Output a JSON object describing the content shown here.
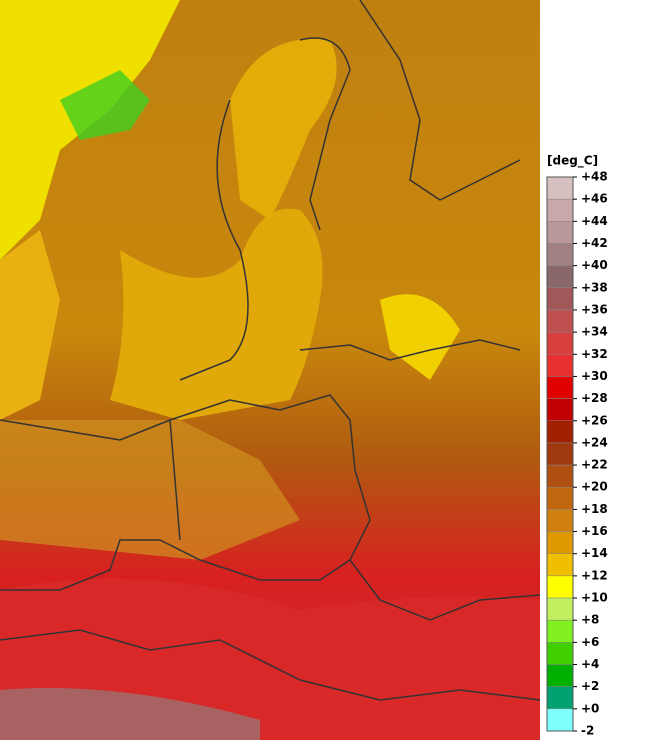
{
  "legend": {
    "unit": "[deg_C]",
    "ticks": [
      {
        "value": 48,
        "label": "+48"
      },
      {
        "value": 46,
        "label": "+46"
      },
      {
        "value": 44,
        "label": "+44"
      },
      {
        "value": 42,
        "label": "+42"
      },
      {
        "value": 40,
        "label": "+40"
      },
      {
        "value": 38,
        "label": "+38"
      },
      {
        "value": 36,
        "label": "+36"
      },
      {
        "value": 34,
        "label": "+34"
      },
      {
        "value": 32,
        "label": "+32"
      },
      {
        "value": 30,
        "label": "+30"
      },
      {
        "value": 28,
        "label": "+28"
      },
      {
        "value": 26,
        "label": "+26"
      },
      {
        "value": 24,
        "label": "+24"
      },
      {
        "value": 22,
        "label": "+22"
      },
      {
        "value": 20,
        "label": "+20"
      },
      {
        "value": 18,
        "label": "+18"
      },
      {
        "value": 16,
        "label": "+16"
      },
      {
        "value": 14,
        "label": "+14"
      },
      {
        "value": 12,
        "label": "+12"
      },
      {
        "value": 10,
        "label": "+10"
      },
      {
        "value": 8,
        "label": "+8"
      },
      {
        "value": 6,
        "label": "+6"
      },
      {
        "value": 4,
        "label": "+4"
      },
      {
        "value": 2,
        "label": "+2"
      },
      {
        "value": 0,
        "label": "+0"
      },
      -2
    ],
    "colors": [
      "#d8c0c0",
      "#c8a8a8",
      "#b89898",
      "#a08080",
      "#886868",
      "#a05858",
      "#c05050",
      "#d84040",
      "#e83030",
      "#e00000",
      "#c00000",
      "#a02000",
      "#a03810",
      "#b05010",
      "#c06810",
      "#d08010",
      "#e09800",
      "#f0c000",
      "#ffff00",
      "#c0f060",
      "#80f020",
      "#40d000",
      "#00b000",
      "#00a070",
      "#80ffff"
    ]
  }
}
